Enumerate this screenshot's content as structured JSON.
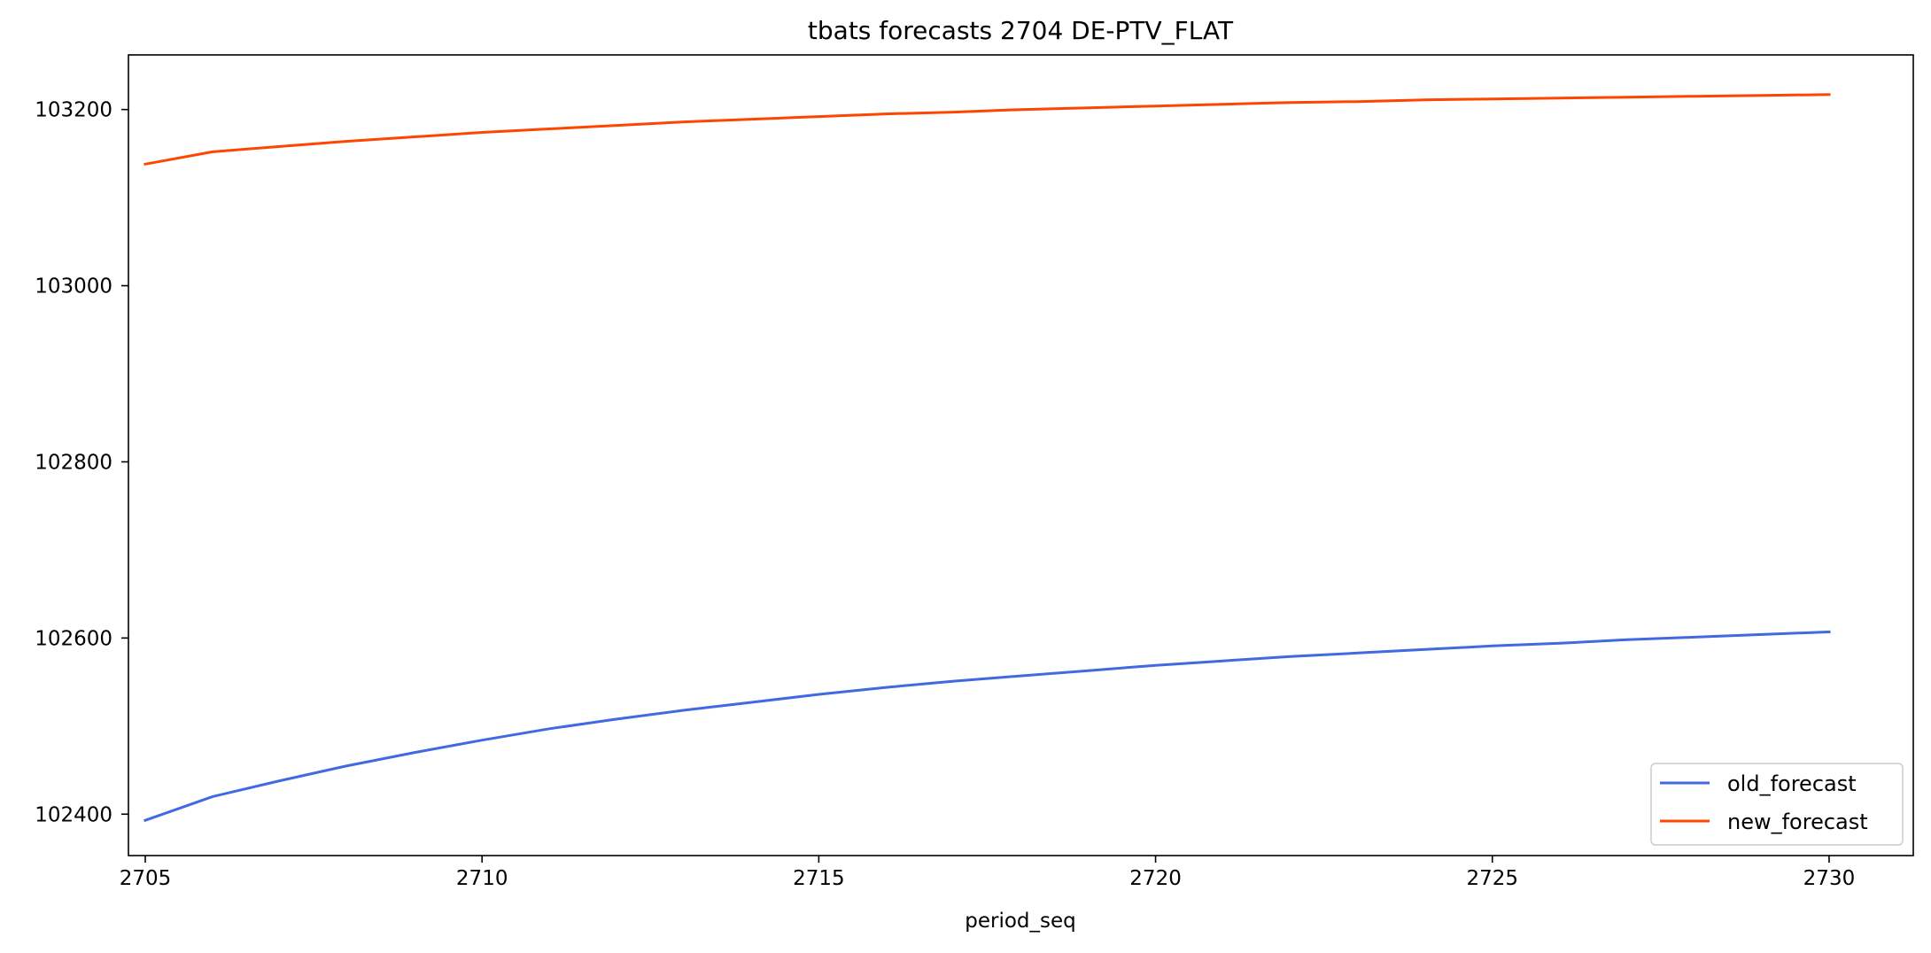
{
  "chart_data": {
    "type": "line",
    "title": "tbats forecasts 2704 DE-PTV_FLAT",
    "xlabel": "period_seq",
    "ylabel": "",
    "xlim": [
      2704.75,
      2731.25
    ],
    "ylim": [
      102353,
      103262
    ],
    "xticks": [
      2705,
      2710,
      2715,
      2720,
      2725,
      2730
    ],
    "yticks": [
      102400,
      102600,
      102800,
      103000,
      103200
    ],
    "grid": false,
    "legend_position": "lower-right",
    "x": [
      2705,
      2706,
      2707,
      2708,
      2709,
      2710,
      2711,
      2712,
      2713,
      2714,
      2715,
      2716,
      2717,
      2718,
      2719,
      2720,
      2721,
      2722,
      2723,
      2724,
      2725,
      2726,
      2727,
      2728,
      2729,
      2730
    ],
    "series": [
      {
        "name": "old_forecast",
        "color": "#4169e1",
        "values": [
          102393,
          102420,
          102438,
          102455,
          102470,
          102484,
          102497,
          102508,
          102518,
          102527,
          102536,
          102544,
          102551,
          102557,
          102563,
          102569,
          102574,
          102579,
          102583,
          102587,
          102591,
          102594,
          102598,
          102601,
          102604,
          102607
        ]
      },
      {
        "name": "new_forecast",
        "color": "#ff4500",
        "values": [
          103138,
          103152,
          103158,
          103164,
          103169,
          103174,
          103178,
          103182,
          103186,
          103189,
          103192,
          103195,
          103197,
          103200,
          103202,
          103204,
          103206,
          103208,
          103209,
          103211,
          103212,
          103213,
          103214,
          103215,
          103216,
          103217
        ]
      }
    ]
  }
}
